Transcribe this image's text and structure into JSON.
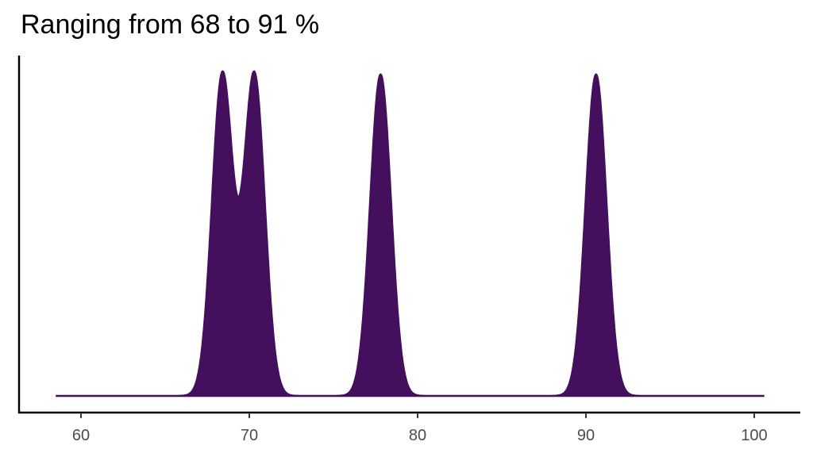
{
  "chart_data": {
    "type": "area",
    "subtype": "density",
    "title": "Ranging from 68 to 91 %",
    "xlabel": "",
    "ylabel": "",
    "xlim": [
      56.2,
      103.0
    ],
    "x_ticks": [
      60,
      70,
      80,
      90,
      100
    ],
    "x_tick_labels": [
      "60",
      "70",
      "80",
      "90",
      "100"
    ],
    "y_ticks": [],
    "grid": false,
    "legend": null,
    "x_range_of_curve": [
      58.5,
      100.6
    ],
    "peaks": [
      {
        "x": 68.4,
        "relative_height": 1.0
      },
      {
        "x": 70.3,
        "relative_height": 1.0
      },
      {
        "x": 77.8,
        "relative_height": 1.0
      },
      {
        "x": 90.6,
        "relative_height": 1.0
      }
    ],
    "peak_sd": 0.62,
    "fill_color": "#440f5c",
    "line_color": "#440f5c"
  }
}
